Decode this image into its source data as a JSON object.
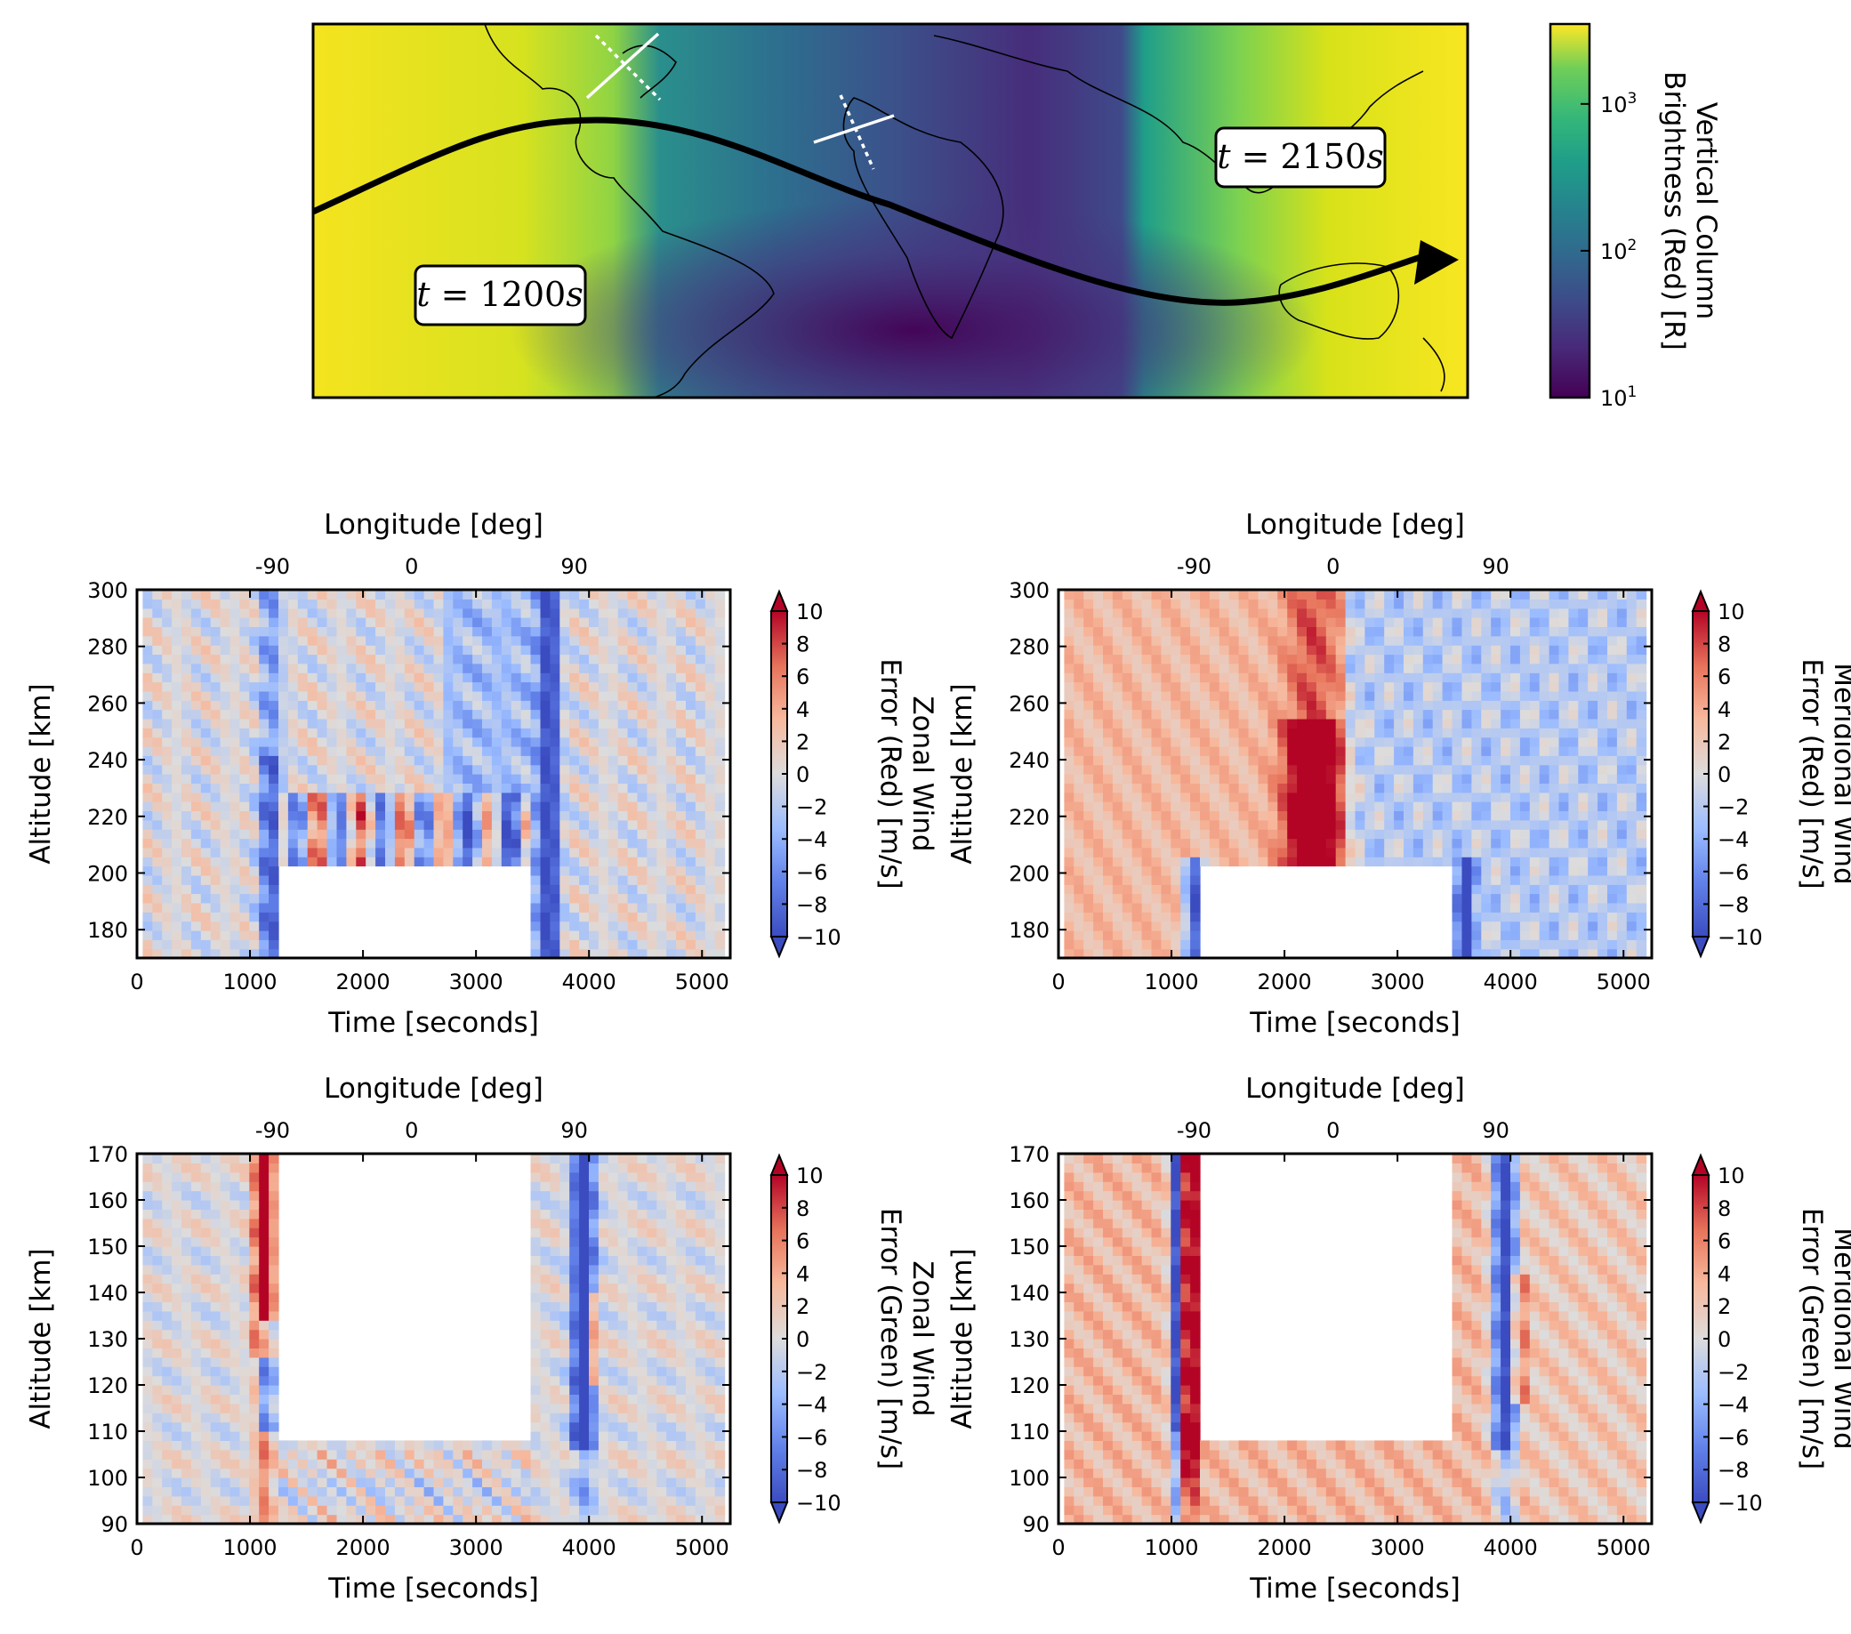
{
  "chart_data": [
    {
      "type": "heatmap",
      "panel": "map",
      "subtype": "geographic map with satellite track",
      "x_extent_deg": [
        -180,
        180
      ],
      "y_extent_deg": [
        -60,
        60
      ],
      "colormap": "viridis",
      "colorbar": {
        "label_lines": [
          "Vertical Column",
          "Brightness (Red) [R]"
        ],
        "scale": "log",
        "range": [
          10,
          3500
        ],
        "ticks": [
          {
            "value": 10,
            "base": "10",
            "exp": "1"
          },
          {
            "value": 100,
            "base": "10",
            "exp": "2"
          },
          {
            "value": 1000,
            "base": "10",
            "exp": "3"
          }
        ]
      },
      "track": {
        "description": "sinusoidal orbit track with arrow",
        "amplitude_deg_lat": 30,
        "start_lon": -180
      },
      "annotations": [
        {
          "text": "t = 1200s",
          "base": "t = ",
          "value": "1200",
          "unit": "s"
        },
        {
          "text": "t = 2150s",
          "base": "t = ",
          "value": "2150",
          "unit": "s"
        }
      ]
    },
    {
      "type": "heatmap",
      "panel": "top-left",
      "xlabel": "Time [seconds]",
      "ylabel": "Altitude [km]",
      "top_xlabel": "Longitude [deg]",
      "xlim": [
        0,
        5250
      ],
      "ylim": [
        170,
        300
      ],
      "x_ticks": [
        0,
        1000,
        2000,
        3000,
        4000,
        5000
      ],
      "y_ticks": [
        180,
        200,
        220,
        240,
        260,
        280,
        300
      ],
      "top_x_ticks": [
        {
          "label": "-90",
          "time": 1200
        },
        {
          "label": "0",
          "time": 2430
        },
        {
          "label": "90",
          "time": 3870
        }
      ],
      "colorbar": {
        "label_lines": [
          "Zonal Wind",
          "Error (Red) [m/s]"
        ],
        "range": [
          -10,
          10
        ],
        "ticks": [
          -10,
          -8,
          -6,
          -4,
          -2,
          0,
          2,
          4,
          6,
          8,
          10
        ],
        "extend": "both"
      },
      "colormap": "coolwarm",
      "masked_region": {
        "time": [
          1280,
          3500
        ],
        "altitude": [
          170,
          202
        ]
      }
    },
    {
      "type": "heatmap",
      "panel": "top-right",
      "xlabel": "Time [seconds]",
      "ylabel": "Altitude [km]",
      "top_xlabel": "Longitude [deg]",
      "xlim": [
        0,
        5250
      ],
      "ylim": [
        170,
        300
      ],
      "x_ticks": [
        0,
        1000,
        2000,
        3000,
        4000,
        5000
      ],
      "y_ticks": [
        180,
        200,
        220,
        240,
        260,
        280,
        300
      ],
      "top_x_ticks": [
        {
          "label": "-90",
          "time": 1200
        },
        {
          "label": "0",
          "time": 2430
        },
        {
          "label": "90",
          "time": 3870
        }
      ],
      "colorbar": {
        "label_lines": [
          "Meridional Wind",
          "Error (Red) [m/s]"
        ],
        "range": [
          -10,
          10
        ],
        "ticks": [
          -10,
          -8,
          -6,
          -4,
          -2,
          0,
          2,
          4,
          6,
          8,
          10
        ],
        "extend": "both"
      },
      "colormap": "coolwarm",
      "masked_region": {
        "time": [
          1280,
          3500
        ],
        "altitude": [
          170,
          202
        ]
      }
    },
    {
      "type": "heatmap",
      "panel": "bottom-left",
      "xlabel": "Time [seconds]",
      "ylabel": "Altitude [km]",
      "top_xlabel": "Longitude [deg]",
      "xlim": [
        0,
        5250
      ],
      "ylim": [
        90,
        170
      ],
      "x_ticks": [
        0,
        1000,
        2000,
        3000,
        4000,
        5000
      ],
      "y_ticks": [
        90,
        100,
        110,
        120,
        130,
        140,
        150,
        160,
        170
      ],
      "top_x_ticks": [
        {
          "label": "-90",
          "time": 1200
        },
        {
          "label": "0",
          "time": 2430
        },
        {
          "label": "90",
          "time": 3870
        }
      ],
      "colorbar": {
        "label_lines": [
          "Zonal Wind",
          "Error (Green) [m/s]"
        ],
        "range": [
          -10,
          10
        ],
        "ticks": [
          -10,
          -8,
          -6,
          -4,
          -2,
          0,
          2,
          4,
          6,
          8,
          10
        ],
        "extend": "both"
      },
      "colormap": "coolwarm",
      "masked_region": {
        "time": [
          1280,
          3500
        ],
        "altitude": [
          107,
          170
        ]
      }
    },
    {
      "type": "heatmap",
      "panel": "bottom-right",
      "xlabel": "Time [seconds]",
      "ylabel": "Altitude [km]",
      "top_xlabel": "Longitude [deg]",
      "xlim": [
        0,
        5250
      ],
      "ylim": [
        90,
        170
      ],
      "x_ticks": [
        0,
        1000,
        2000,
        3000,
        4000,
        5000
      ],
      "y_ticks": [
        90,
        100,
        110,
        120,
        130,
        140,
        150,
        160,
        170
      ],
      "top_x_ticks": [
        {
          "label": "-90",
          "time": 1200
        },
        {
          "label": "0",
          "time": 2430
        },
        {
          "label": "90",
          "time": 3870
        }
      ],
      "colorbar": {
        "label_lines": [
          "Meridional Wind",
          "Error (Green) [m/s]"
        ],
        "range": [
          -10,
          10
        ],
        "ticks": [
          -10,
          -8,
          -6,
          -4,
          -2,
          0,
          2,
          4,
          6,
          8,
          10
        ],
        "extend": "both"
      },
      "colormap": "coolwarm",
      "masked_region": {
        "time": [
          1280,
          3500
        ],
        "altitude": [
          107,
          170
        ]
      }
    }
  ]
}
